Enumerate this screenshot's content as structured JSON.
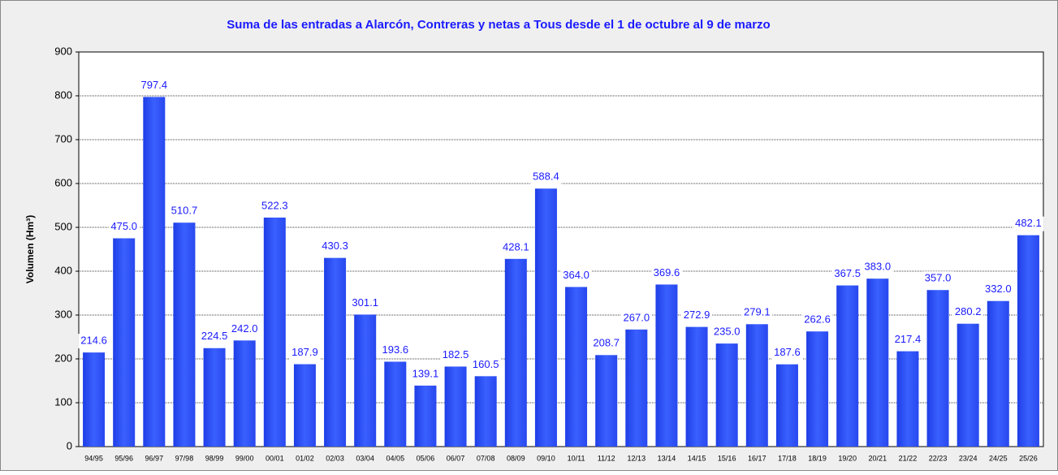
{
  "chart_data": {
    "type": "bar",
    "title": "Suma de las entradas a Alarcón, Contreras y netas a Tous desde el 1 de octubre al 9 de marzo",
    "y_label": "Volumen (Hm³)",
    "categories": [
      "94/95",
      "95/96",
      "96/97",
      "97/98",
      "98/99",
      "99/00",
      "00/01",
      "01/02",
      "02/03",
      "03/04",
      "04/05",
      "05/06",
      "06/07",
      "07/08",
      "08/09",
      "09/10",
      "10/11",
      "11/12",
      "12/13",
      "13/14",
      "14/15",
      "15/16",
      "16/17",
      "17/18",
      "18/19",
      "19/20",
      "20/21",
      "21/22",
      "22/23",
      "23/24",
      "24/25",
      "25/26"
    ],
    "values": [
      214.6,
      475.0,
      797.4,
      510.7,
      224.5,
      242.0,
      522.3,
      187.9,
      430.3,
      301.1,
      193.6,
      139.1,
      182.5,
      160.5,
      428.1,
      588.4,
      364.0,
      208.7,
      267.0,
      369.6,
      272.9,
      235.0,
      279.1,
      187.6,
      262.6,
      367.5,
      383.0,
      217.4,
      357.0,
      280.2,
      332.0,
      482.1
    ],
    "value_labels": [
      "214.6",
      "475.0",
      "797.4",
      "510.7",
      "224.5",
      "242.0",
      "522.3",
      "187.9",
      "430.3",
      "301.1",
      "193.6",
      "139.1",
      "182.5",
      "160.5",
      "428.1",
      "588.4",
      "364.0",
      "208.7",
      "267.0",
      "369.6",
      "272.9",
      "235.0",
      "279.1",
      "187.6",
      "262.6",
      "367.5",
      "383.0",
      "217.4",
      "357.0",
      "280.2",
      "332.0",
      "482.1"
    ],
    "color": "#2f54f5",
    "ylim": [
      0,
      900
    ],
    "yticks": [
      0,
      100,
      200,
      300,
      400,
      500,
      600,
      700,
      800,
      900
    ],
    "grid": true
  }
}
